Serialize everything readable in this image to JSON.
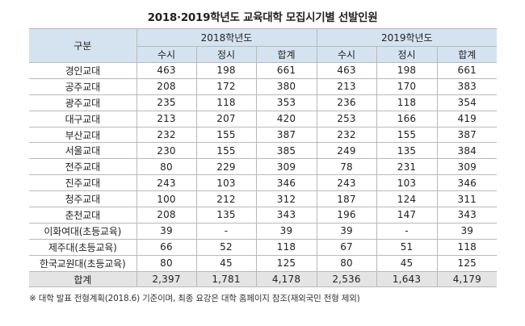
{
  "title": "2018·2019학년도 교육대학 모집시기별 선발인원",
  "header": {
    "category": "구분",
    "year1": "2018학년도",
    "year2": "2019학년도",
    "sub": [
      "수시",
      "정시",
      "합계",
      "수시",
      "정시",
      "합계"
    ]
  },
  "rows": [
    {
      "label": "경인교대",
      "values": [
        "463",
        "198",
        "661",
        "463",
        "198",
        "661"
      ]
    },
    {
      "label": "공주교대",
      "values": [
        "208",
        "172",
        "380",
        "213",
        "170",
        "383"
      ]
    },
    {
      "label": "광주교대",
      "values": [
        "235",
        "118",
        "353",
        "236",
        "118",
        "354"
      ]
    },
    {
      "label": "대구교대",
      "values": [
        "213",
        "207",
        "420",
        "253",
        "166",
        "419"
      ]
    },
    {
      "label": "부산교대",
      "values": [
        "232",
        "155",
        "387",
        "232",
        "155",
        "387"
      ]
    },
    {
      "label": "서울교대",
      "values": [
        "230",
        "155",
        "385",
        "249",
        "135",
        "384"
      ]
    },
    {
      "label": "전주교대",
      "values": [
        "80",
        "229",
        "309",
        "78",
        "231",
        "309"
      ]
    },
    {
      "label": "진주교대",
      "values": [
        "243",
        "103",
        "346",
        "243",
        "103",
        "346"
      ]
    },
    {
      "label": "청주교대",
      "values": [
        "100",
        "212",
        "312",
        "187",
        "124",
        "311"
      ]
    },
    {
      "label": "춘천교대",
      "values": [
        "208",
        "135",
        "343",
        "196",
        "147",
        "343"
      ]
    },
    {
      "label": "이화여대(초등교육)",
      "values": [
        "39",
        "-",
        "39",
        "39",
        "-",
        "39"
      ]
    },
    {
      "label": "제주대(초등교육)",
      "values": [
        "66",
        "52",
        "118",
        "67",
        "51",
        "118"
      ]
    },
    {
      "label": "한국교원대(초등교육)",
      "values": [
        "80",
        "45",
        "125",
        "80",
        "45",
        "125"
      ]
    },
    {
      "label": "합계",
      "values": [
        "2,397",
        "1,781",
        "4,178",
        "2,536",
        "1,643",
        "4,179"
      ]
    }
  ],
  "note": "※ 대학 발표 전형계획(2018.6) 기준이며, 최종 요강은 대학 홈페이지 참조(재외국민 전형 제외)",
  "colors": {
    "header_bg": "#d5e3f1",
    "total_bg": "#e4e4e4",
    "border": "#b9b9b9"
  }
}
